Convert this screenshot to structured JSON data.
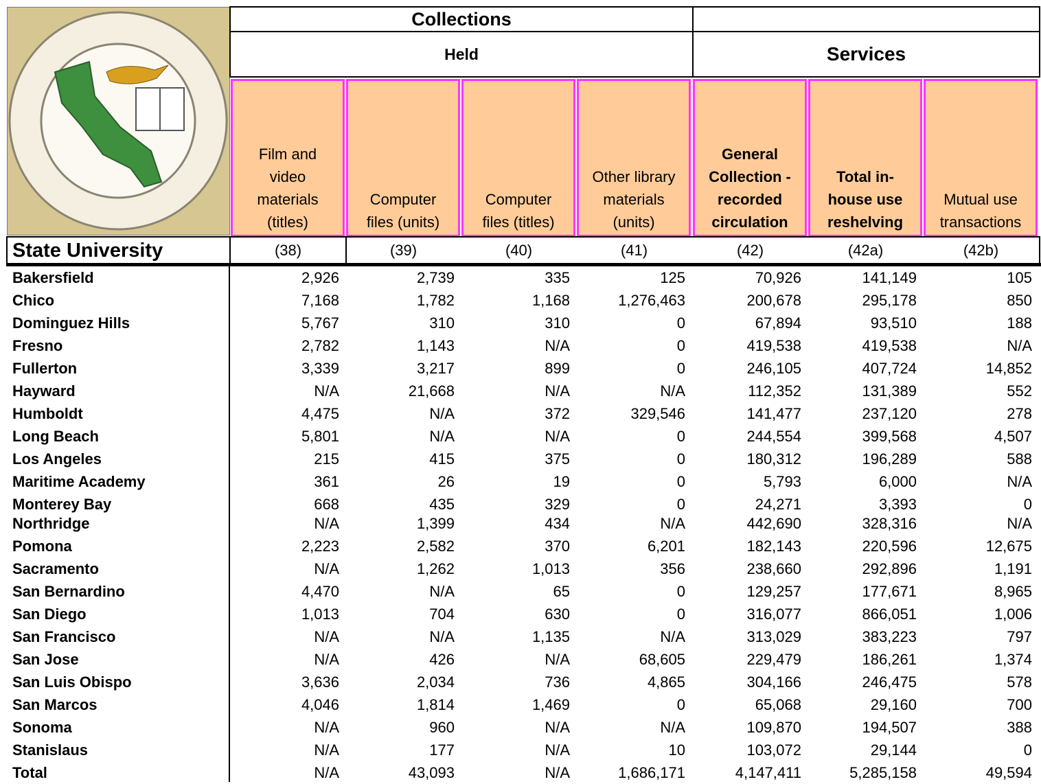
{
  "header": {
    "collections": "Collections",
    "held": "Held",
    "services": "Services",
    "state_university": "State University"
  },
  "columns": [
    {
      "label": [
        "Film and",
        "video",
        "materials",
        "(titles)"
      ],
      "code": "(38)",
      "bold": false
    },
    {
      "label": [
        "Computer",
        "files (units)"
      ],
      "code": "(39)",
      "bold": false
    },
    {
      "label": [
        "Computer",
        "files (titles)"
      ],
      "code": "(40)",
      "bold": false
    },
    {
      "label": [
        "Other library",
        "materials",
        "(units)"
      ],
      "code": "(41)",
      "bold": false
    },
    {
      "label": [
        "General",
        "Collection -",
        "recorded",
        "circulation"
      ],
      "code": "(42)",
      "bold": true
    },
    {
      "label": [
        "Total in-",
        "house use",
        "reshelving"
      ],
      "code": "(42a)",
      "bold": true
    },
    {
      "label": [
        "Mutual use",
        "transactions"
      ],
      "code": "(42b)",
      "bold": false
    }
  ],
  "rows": [
    {
      "name": "Bakersfield",
      "values": [
        "2,926",
        "2,739",
        "335",
        "125",
        "70,926",
        "141,149",
        "105"
      ]
    },
    {
      "name": "Chico",
      "values": [
        "7,168",
        "1,782",
        "1,168",
        "1,276,463",
        "200,678",
        "295,178",
        "850"
      ]
    },
    {
      "name": "Dominguez Hills",
      "values": [
        "5,767",
        "310",
        "310",
        "0",
        "67,894",
        "93,510",
        "188"
      ]
    },
    {
      "name": "Fresno",
      "values": [
        "2,782",
        "1,143",
        "N/A",
        "0",
        "419,538",
        "419,538",
        "N/A"
      ]
    },
    {
      "name": "Fullerton",
      "values": [
        "3,339",
        "3,217",
        "899",
        "0",
        "246,105",
        "407,724",
        "14,852"
      ]
    },
    {
      "name": "Hayward",
      "values": [
        "N/A",
        "21,668",
        "N/A",
        "N/A",
        "112,352",
        "131,389",
        "552"
      ]
    },
    {
      "name": "Humboldt",
      "values": [
        "4,475",
        "N/A",
        "372",
        "329,546",
        "141,477",
        "237,120",
        "278"
      ]
    },
    {
      "name": "Long Beach",
      "values": [
        "5,801",
        "N/A",
        "N/A",
        "0",
        "244,554",
        "399,568",
        "4,507"
      ]
    },
    {
      "name": "Los Angeles",
      "values": [
        "215",
        "415",
        "375",
        "0",
        "180,312",
        "196,289",
        "588"
      ]
    },
    {
      "name": "Maritime Academy",
      "values": [
        "361",
        "26",
        "19",
        "0",
        "5,793",
        "6,000",
        "N/A"
      ]
    },
    {
      "name": "Monterey Bay",
      "values": [
        "668",
        "435",
        "329",
        "0",
        "24,271",
        "3,393",
        "0"
      ]
    },
    {
      "name": "Northridge",
      "values": [
        "N/A",
        "1,399",
        "434",
        "N/A",
        "442,690",
        "328,316",
        "N/A"
      ]
    },
    {
      "name": "Pomona",
      "values": [
        "2,223",
        "2,582",
        "370",
        "6,201",
        "182,143",
        "220,596",
        "12,675"
      ]
    },
    {
      "name": "Sacramento",
      "values": [
        "N/A",
        "1,262",
        "1,013",
        "356",
        "238,660",
        "292,896",
        "1,191"
      ]
    },
    {
      "name": "San Bernardino",
      "values": [
        "4,470",
        "N/A",
        "65",
        "0",
        "129,257",
        "177,671",
        "8,965"
      ]
    },
    {
      "name": "San Diego",
      "values": [
        "1,013",
        "704",
        "630",
        "0",
        "316,077",
        "866,051",
        "1,006"
      ]
    },
    {
      "name": "San Francisco",
      "values": [
        "N/A",
        "N/A",
        "1,135",
        "N/A",
        "313,029",
        "383,223",
        "797"
      ]
    },
    {
      "name": "San Jose",
      "values": [
        "N/A",
        "426",
        "N/A",
        "68,605",
        "229,479",
        "186,261",
        "1,374"
      ]
    },
    {
      "name": "San Luis Obispo",
      "values": [
        "3,636",
        "2,034",
        "736",
        "4,865",
        "304,166",
        "246,475",
        "578"
      ]
    },
    {
      "name": "San Marcos",
      "values": [
        "4,046",
        "1,814",
        "1,469",
        "0",
        "65,068",
        "29,160",
        "700"
      ]
    },
    {
      "name": "Sonoma",
      "values": [
        "N/A",
        "960",
        "N/A",
        "N/A",
        "109,870",
        "194,507",
        "388"
      ]
    },
    {
      "name": "Stanislaus",
      "values": [
        "N/A",
        "177",
        "N/A",
        "10",
        "103,072",
        "29,144",
        "0"
      ]
    },
    {
      "name": "Total",
      "values": [
        "N/A",
        "43,093",
        "N/A",
        "1,686,171",
        "4,147,411",
        "5,285,158",
        "49,594"
      ]
    }
  ]
}
